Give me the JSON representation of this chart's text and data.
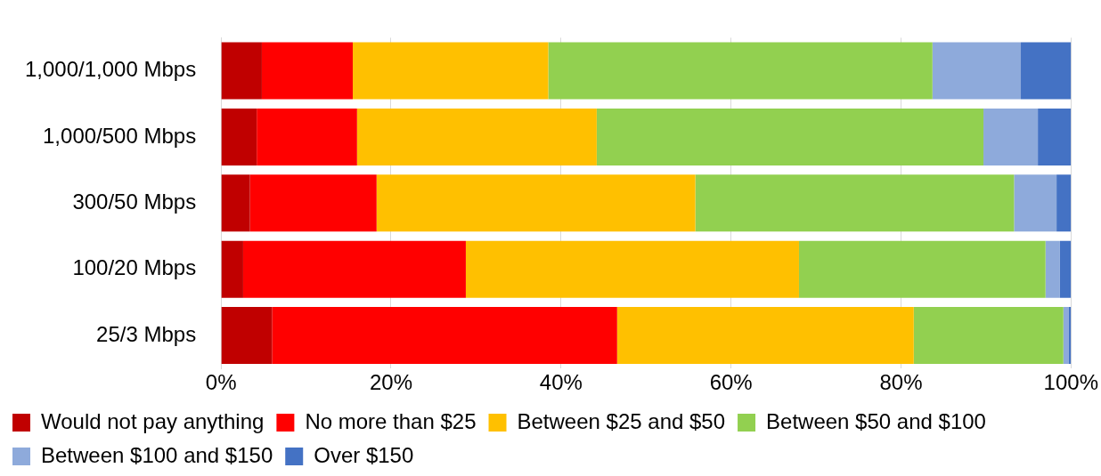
{
  "chart_data": {
    "type": "bar",
    "orientation": "horizontal",
    "stacked": true,
    "categories": [
      "1,000/1,000 Mbps",
      "1,000/500 Mbps",
      "300/50 Mbps",
      "100/20 Mbps",
      "25/3 Mbps"
    ],
    "series": [
      {
        "name": "Would not pay anything",
        "color": "#c00000",
        "values": [
          4.8,
          4.2,
          3.4,
          2.6,
          6.0
        ]
      },
      {
        "name": "No more than $25",
        "color": "#ff0000",
        "values": [
          10.7,
          11.8,
          14.9,
          26.2,
          40.6
        ]
      },
      {
        "name": "Between $25 and $50",
        "color": "#ffc000",
        "values": [
          23.0,
          28.2,
          37.5,
          39.2,
          34.9
        ]
      },
      {
        "name": "Between $50 and $100",
        "color": "#92d050",
        "values": [
          45.2,
          45.5,
          37.5,
          29.0,
          17.6
        ]
      },
      {
        "name": "Between $100 and $150",
        "color": "#8eaadb",
        "values": [
          10.4,
          6.4,
          5.0,
          1.7,
          0.6
        ]
      },
      {
        "name": "Over $150",
        "color": "#4472c4",
        "values": [
          5.9,
          3.9,
          1.7,
          1.3,
          0.3
        ]
      }
    ],
    "xlim": [
      0,
      100
    ],
    "xticks": [
      {
        "value": 0,
        "label": "0%"
      },
      {
        "value": 20,
        "label": "20%"
      },
      {
        "value": 40,
        "label": "40%"
      },
      {
        "value": 60,
        "label": "60%"
      },
      {
        "value": 80,
        "label": "80%"
      },
      {
        "value": 100,
        "label": "100%"
      }
    ],
    "grid": "x",
    "legend": "bottom"
  }
}
